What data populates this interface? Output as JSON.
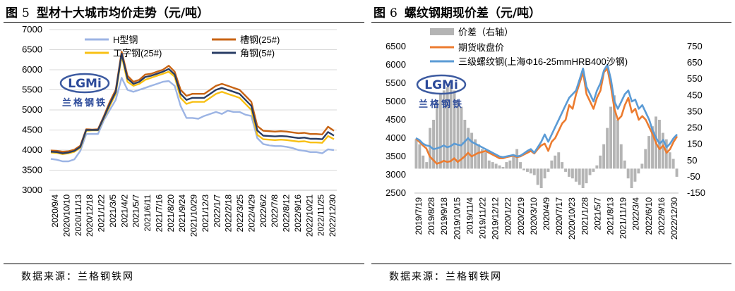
{
  "figures": [
    {
      "number_label": "图",
      "number": "5",
      "title": "型材十大城市均价走势（元/吨）",
      "source": "数据来源：兰格钢铁网",
      "logo": {
        "text": "LGMi",
        "subtitle": "兰格钢铁",
        "icon": "lgmi-logo-icon"
      }
    },
    {
      "number_label": "图",
      "number": "6",
      "title": "螺纹钢期现价差（元/吨）",
      "source": "数据来源：兰格钢铁网",
      "logo": {
        "text": "LGMi",
        "subtitle": "兰格钢铁",
        "icon": "lgmi-logo-icon"
      }
    }
  ],
  "chart_data": [
    {
      "type": "line",
      "y_ticks": [
        3000,
        3500,
        4000,
        4500,
        5000,
        5500,
        6000,
        6500,
        7000
      ],
      "ylim": [
        3000,
        7000
      ],
      "x_labels": [
        "2020/9/4",
        "2020/10/10",
        "2020/11/13",
        "2020/12/18",
        "2021/1/22",
        "2021/3/5",
        "2021/4/2",
        "2021/5/7",
        "2021/6/11",
        "2021/7/16",
        "2021/8/20",
        "2021/9/24",
        "2021/10/29",
        "2021/12/3",
        "2022/1/7",
        "2022/2/18",
        "2022/3/25",
        "2022/4/29",
        "2022/6/2",
        "2022/7/8",
        "2022/8/12",
        "2022/9/16",
        "2022/10/21",
        "2022/11/25",
        "2022/12/30"
      ],
      "grid": true,
      "series": [
        {
          "name": "H型钢",
          "color": "#9cb4e4",
          "values": [
            3780,
            3760,
            3720,
            3720,
            3770,
            3980,
            4400,
            4400,
            4400,
            4750,
            5000,
            5250,
            5800,
            5500,
            5450,
            5500,
            5550,
            5600,
            5650,
            5700,
            5720,
            5600,
            5100,
            4800,
            4800,
            4780,
            4850,
            4900,
            4950,
            4900,
            4980,
            4950,
            4950,
            4880,
            4850,
            4300,
            4150,
            4120,
            4100,
            4100,
            4080,
            4050,
            4000,
            3980,
            3950,
            3950,
            3920,
            4020,
            4000
          ]
        },
        {
          "name": "槽钢(25#)",
          "color": "#c86414",
          "values": [
            3990,
            3980,
            3960,
            3970,
            4010,
            4110,
            4520,
            4510,
            4520,
            4850,
            5200,
            5500,
            6450,
            5850,
            5700,
            5750,
            5880,
            5900,
            5950,
            6000,
            6100,
            5950,
            5500,
            5350,
            5400,
            5400,
            5400,
            5500,
            5600,
            5650,
            5600,
            5550,
            5500,
            5350,
            5200,
            4600,
            4480,
            4470,
            4460,
            4470,
            4460,
            4440,
            4420,
            4430,
            4400,
            4400,
            4390,
            4580,
            4480
          ]
        },
        {
          "name": "工字钢(25#)",
          "color": "#f8c014",
          "values": [
            3940,
            3930,
            3900,
            3920,
            3960,
            4060,
            4480,
            4490,
            4490,
            4800,
            5100,
            5400,
            6350,
            5700,
            5600,
            5650,
            5750,
            5800,
            5850,
            5900,
            5950,
            5830,
            5300,
            5150,
            5200,
            5200,
            5200,
            5300,
            5400,
            5450,
            5400,
            5350,
            5300,
            5150,
            5000,
            4380,
            4270,
            4260,
            4250,
            4260,
            4250,
            4230,
            4210,
            4220,
            4190,
            4190,
            4180,
            4350,
            4270
          ]
        },
        {
          "name": "角钢(5#)",
          "color": "#283c64",
          "values": [
            3960,
            3950,
            3920,
            3940,
            3980,
            4080,
            4500,
            4500,
            4500,
            4820,
            5150,
            5450,
            6400,
            5780,
            5650,
            5700,
            5820,
            5850,
            5900,
            5950,
            6020,
            5880,
            5400,
            5250,
            5300,
            5300,
            5300,
            5400,
            5500,
            5550,
            5500,
            5450,
            5400,
            5250,
            5100,
            4490,
            4360,
            4350,
            4340,
            4350,
            4340,
            4320,
            4300,
            4310,
            4280,
            4280,
            4270,
            4450,
            4360
          ]
        }
      ]
    },
    {
      "type": "line",
      "y_ticks": [
        2500,
        3000,
        3500,
        4000,
        4500,
        5000,
        5500,
        6000,
        6500
      ],
      "ylim": [
        2500,
        6500
      ],
      "y2_ticks": [
        -150,
        -50,
        50,
        150,
        250,
        350,
        450,
        550,
        650,
        750
      ],
      "y2lim": [
        -150,
        750
      ],
      "x_labels": [
        "2019/7/19",
        "2019/8/28",
        "2019/9/18",
        "2019/10/15",
        "2019/11/4",
        "2019/11/22",
        "2019/12/12",
        "2020/1/22",
        "2020/2/19",
        "2020/3/10",
        "2020/4/9",
        "2020/7/17",
        "2020/10/23",
        "2021/1/28",
        "2021/5/7",
        "2021/8/13",
        "2021/11/19",
        "2022/3/4",
        "2022/6/10",
        "2022/9/16",
        "2022/12/30"
      ],
      "series": [
        {
          "name": "价差（右轴）",
          "kind": "bar",
          "axis": "right",
          "color": "#b4b4b4",
          "values": [
            180,
            150,
            80,
            40,
            250,
            300,
            420,
            460,
            480,
            500,
            520,
            480,
            420,
            380,
            300,
            250,
            220,
            180,
            150,
            120,
            100,
            50,
            40,
            30,
            20,
            10,
            40,
            50,
            80,
            120,
            40,
            -10,
            -20,
            -30,
            -40,
            -100,
            -120,
            -60,
            -20,
            50,
            80,
            100,
            40,
            -20,
            -50,
            -60,
            -80,
            -100,
            -120,
            -90,
            -40,
            -20,
            20,
            80,
            150,
            250,
            380,
            450,
            300,
            150,
            50,
            -60,
            -120,
            -80,
            -30,
            30,
            120,
            200,
            260,
            320,
            300,
            220,
            180,
            100,
            60,
            -50
          ]
        },
        {
          "name": "期货收盘价",
          "kind": "line",
          "axis": "left",
          "color": "#ec7c30",
          "values": [
            3980,
            3900,
            3800,
            3720,
            3500,
            3400,
            3300,
            3330,
            3380,
            3350,
            3370,
            3450,
            3350,
            3420,
            3500,
            3600,
            3500,
            3550,
            3600,
            3620,
            3650,
            3600,
            3550,
            3500,
            3450,
            3450,
            3480,
            3500,
            3520,
            3480,
            3500,
            3550,
            3600,
            3650,
            3580,
            3700,
            3800,
            3850,
            3650,
            3900,
            4000,
            4200,
            4400,
            4500,
            4900,
            4800,
            5200,
            5500,
            5800,
            5200,
            5000,
            4800,
            5100,
            5300,
            5800,
            5900,
            5400,
            4800,
            4500,
            4600,
            4900,
            5100,
            4700,
            4800,
            4500,
            4600,
            4500,
            4300,
            4100,
            3850,
            3700,
            3800,
            3600,
            3700,
            3900,
            4050
          ]
        },
        {
          "name": "三级螺纹钢(上海Φ16-25mmHRB400沙钢)",
          "kind": "line",
          "axis": "left",
          "color": "#5b9bd5",
          "values": [
            4000,
            3950,
            3850,
            3800,
            3780,
            3700,
            3720,
            3750,
            3800,
            3750,
            3780,
            3850,
            3820,
            3800,
            3900,
            4000,
            3900,
            3850,
            3800,
            3750,
            3700,
            3650,
            3600,
            3550,
            3500,
            3480,
            3500,
            3520,
            3540,
            3500,
            3520,
            3580,
            3650,
            3700,
            3600,
            3750,
            3900,
            4100,
            3900,
            4100,
            4300,
            4500,
            4700,
            4900,
            5100,
            5200,
            5300,
            5600,
            5900,
            5400,
            5200,
            5000,
            5300,
            5500,
            5850,
            6000,
            5600,
            5000,
            4800,
            5000,
            5200,
            5300,
            5000,
            5050,
            4800,
            4900,
            4700,
            4500,
            4200,
            4000,
            3850,
            3950,
            3750,
            3850,
            4000,
            4100
          ]
        }
      ]
    }
  ]
}
